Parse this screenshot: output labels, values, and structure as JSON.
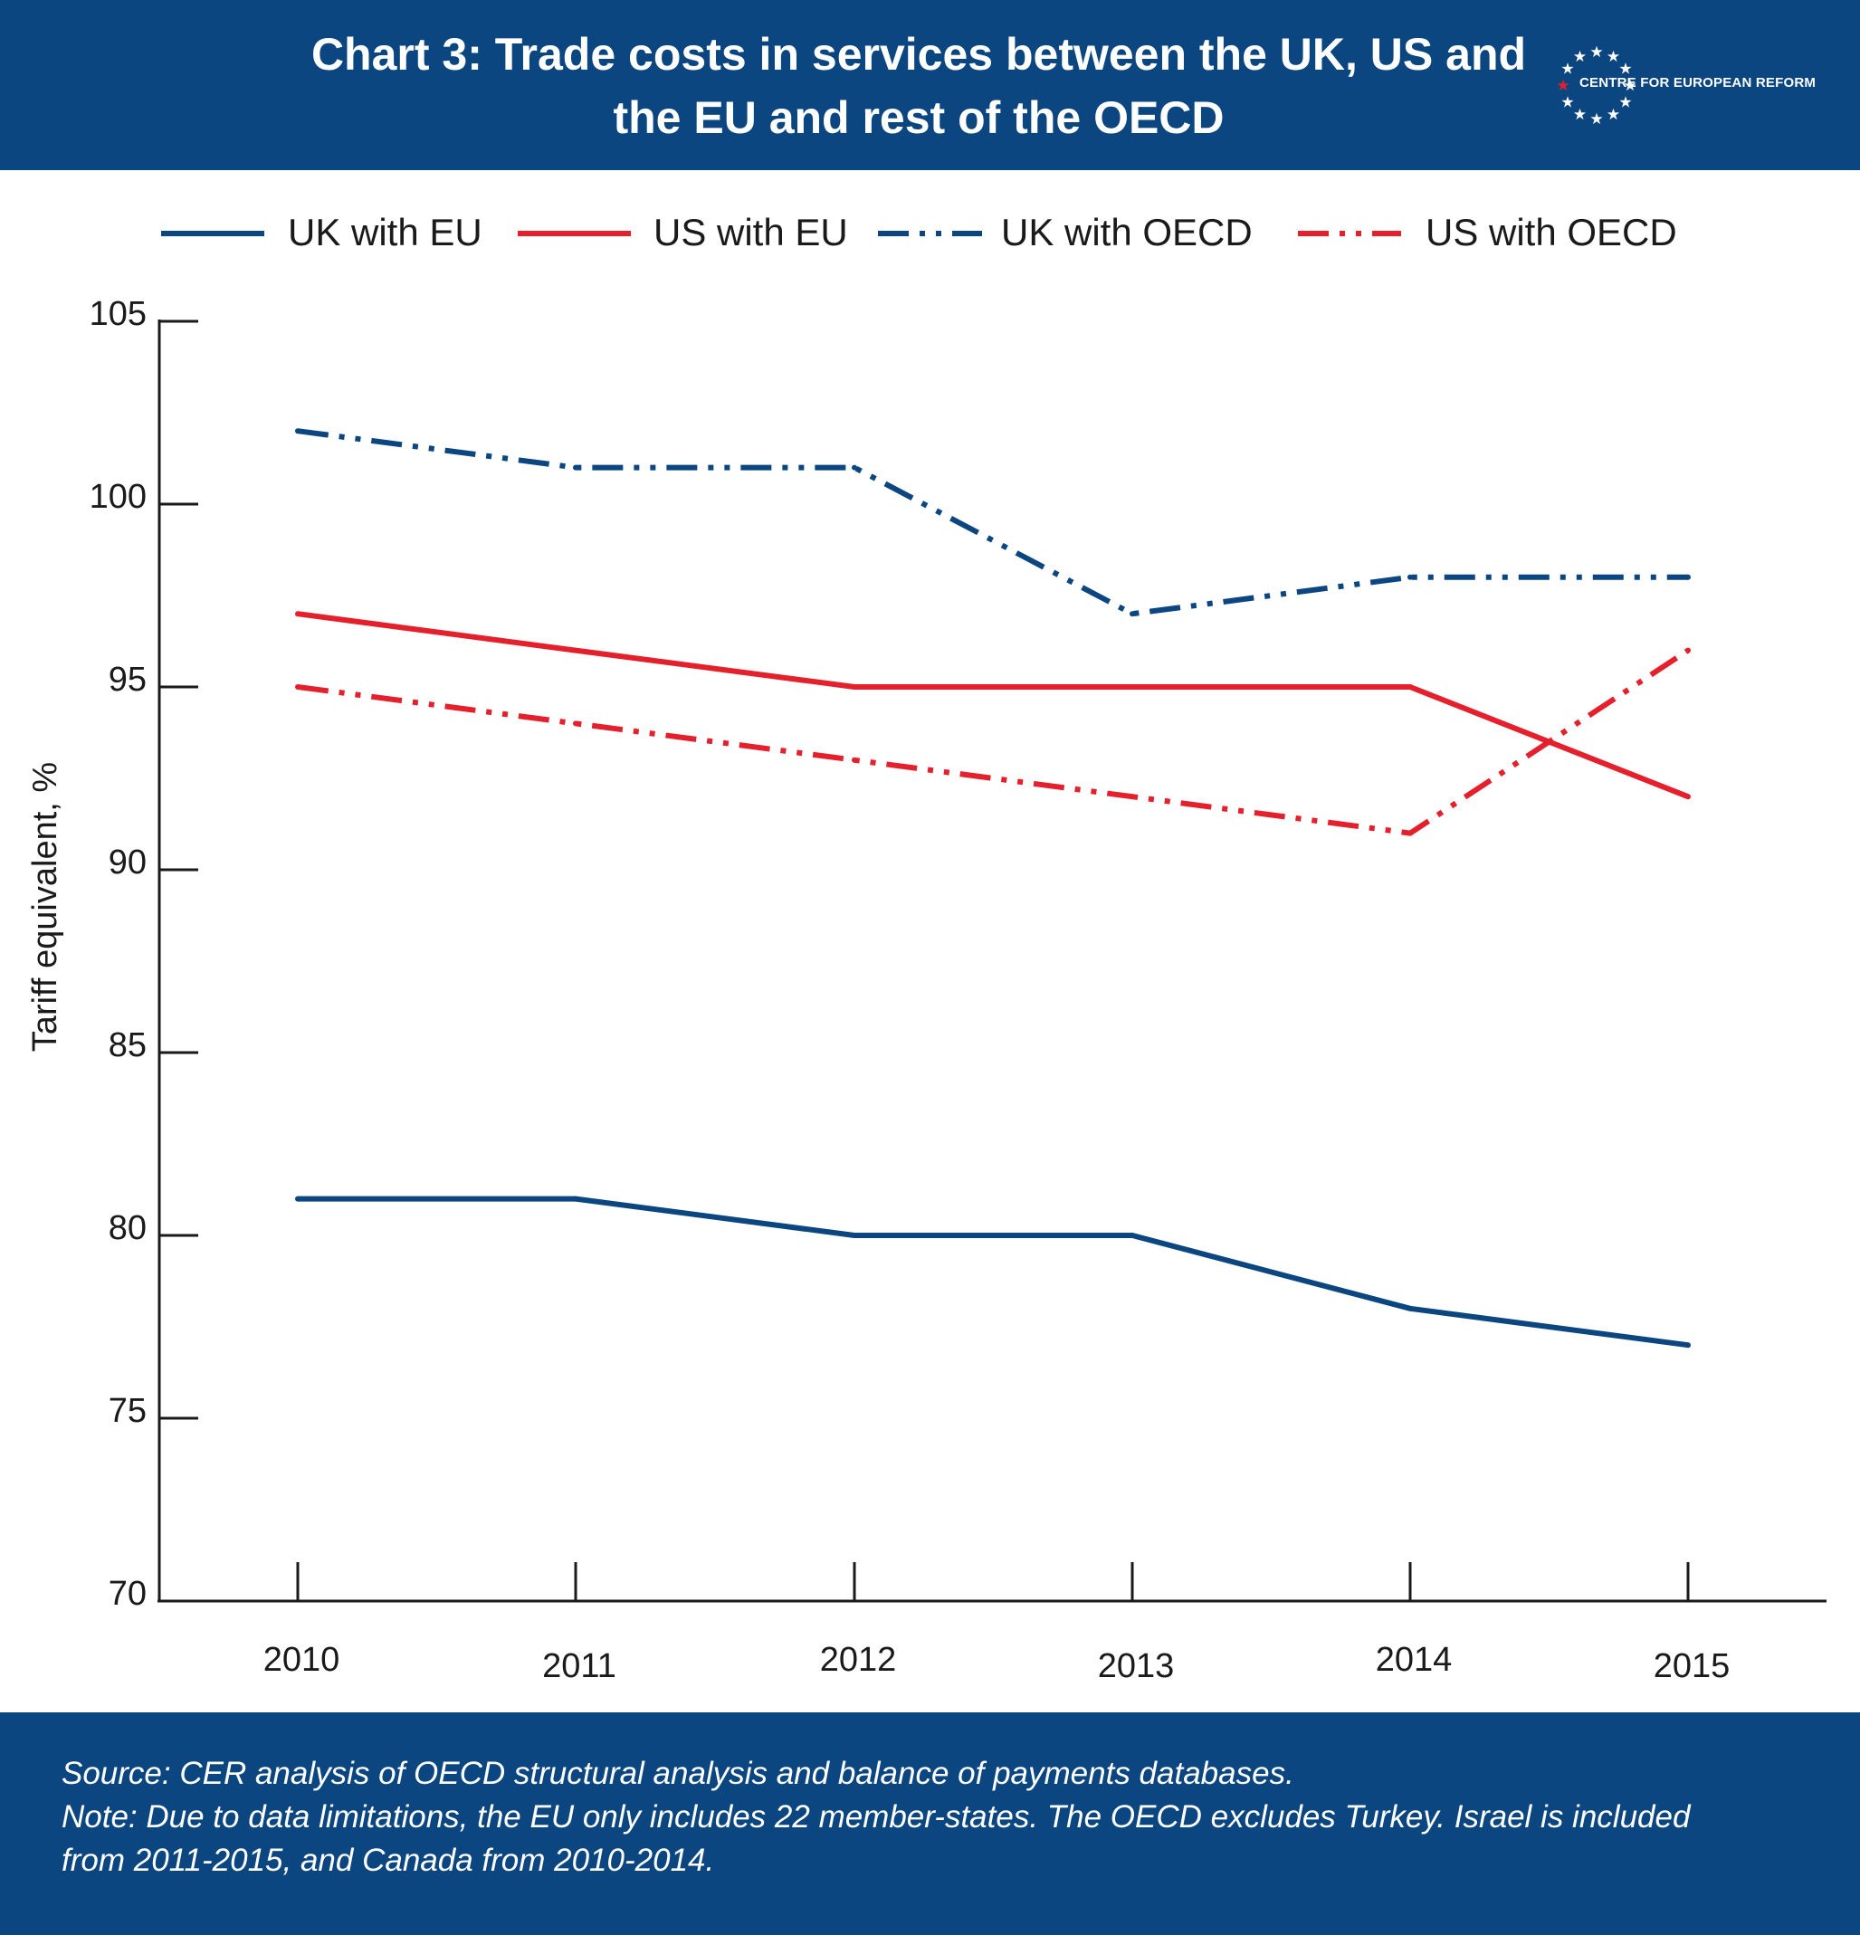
{
  "header": {
    "title_line1": "Chart 3: Trade costs in services between the UK, US and",
    "title_line2": "the EU and rest of the OECD",
    "logo_text": "CENTRE FOR EUROPEAN REFORM"
  },
  "colors": {
    "header_bg": "#0b4680",
    "uk_blue": "#0b4680",
    "us_red": "#e3202c",
    "logo_star": "#ffffff",
    "logo_accent_star": "#e3202c"
  },
  "chart_data": {
    "type": "line",
    "title": "Chart 3: Trade costs in services between the UK, US and the EU and rest of the OECD",
    "xlabel": "",
    "ylabel": "Tariff equivalent, %",
    "ylim": [
      70,
      105
    ],
    "yticks": [
      70,
      75,
      80,
      85,
      90,
      95,
      100,
      105
    ],
    "x": [
      "2010",
      "2011",
      "2012",
      "2013",
      "2014",
      "2015"
    ],
    "grid": false,
    "legend_position": "top",
    "series": [
      {
        "name": "UK with EU",
        "values": [
          81,
          81,
          80,
          80,
          78,
          77
        ],
        "color": "#0b4680",
        "style": "solid"
      },
      {
        "name": "US with EU",
        "values": [
          97,
          96,
          95,
          95,
          95,
          92
        ],
        "color": "#e3202c",
        "style": "solid"
      },
      {
        "name": "UK with OECD",
        "values": [
          102,
          101,
          101,
          97,
          98,
          98
        ],
        "color": "#0b4680",
        "style": "dash-dot-dot"
      },
      {
        "name": "US with OECD",
        "values": [
          95,
          94,
          93,
          92,
          91,
          96
        ],
        "color": "#e3202c",
        "style": "dash-dot-dot"
      }
    ]
  },
  "footer": {
    "line1": "Source:  CER analysis of OECD structural analysis and balance of payments databases.",
    "line2": "Note: Due to data limitations, the EU only includes 22 member-states. The OECD excludes Turkey. Israel is included",
    "line3": "from 2011-2015, and Canada from 2010-2014."
  }
}
